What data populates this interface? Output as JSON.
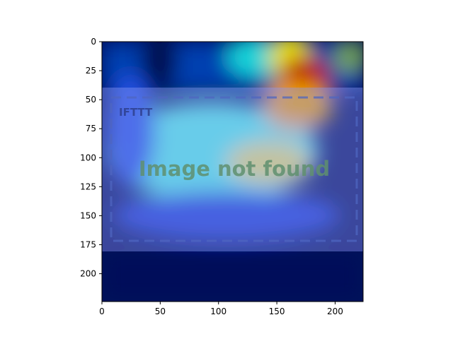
{
  "chart_data": {
    "type": "heatmap",
    "title": "",
    "xlabel": "",
    "ylabel": "",
    "xlim": [
      0,
      224
    ],
    "ylim": [
      224,
      0
    ],
    "x_ticks": [
      0,
      50,
      100,
      150,
      200
    ],
    "y_ticks": [
      0,
      25,
      50,
      75,
      100,
      125,
      150,
      175,
      200
    ],
    "colormap": "jet",
    "grid": false,
    "overlay_image_text": {
      "logo": "IFTTT",
      "message": "Image not found"
    },
    "overlay_frame_rows": [
      40,
      180
    ]
  },
  "colors": {
    "overlay_tint": "#8C9CF8",
    "dash_border": "#4F66C0",
    "logo_text": "#2E3F8E",
    "message_text": "#5F8F6F"
  }
}
